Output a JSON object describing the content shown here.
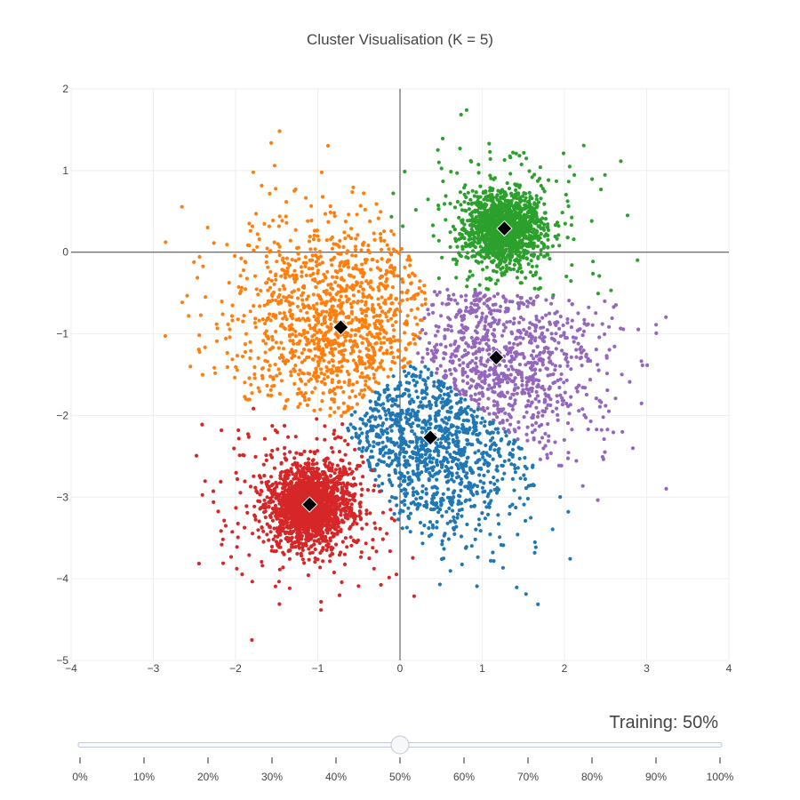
{
  "chart_data": {
    "type": "scatter",
    "title": "Cluster Visualisation (K = 5)",
    "xlabel": "",
    "ylabel": "",
    "xlim": [
      -4,
      4
    ],
    "ylim": [
      -5,
      2
    ],
    "x_ticks": [
      -4,
      -3,
      -2,
      -1,
      0,
      1,
      2,
      3,
      4
    ],
    "y_ticks": [
      2,
      1,
      0,
      -1,
      -2,
      -3,
      -4,
      -5
    ],
    "x_tick_labels": [
      "−4",
      "−3",
      "−2",
      "−1",
      "0",
      "1",
      "2",
      "3",
      "4"
    ],
    "y_tick_labels": [
      "2",
      "1",
      "0",
      "−1",
      "−2",
      "−3",
      "−4",
      "−5"
    ],
    "grid": true,
    "zero_lines": true,
    "legend": "none",
    "clusters": [
      {
        "color": "#2ca02c",
        "centroid": [
          1.27,
          0.29
        ],
        "core_sd": 0.22,
        "n_core": 1400,
        "spread_sd": 0.6,
        "n_spread": 220
      },
      {
        "color": "#ff7f0e",
        "centroid": [
          -0.72,
          -0.92
        ],
        "core_sd": 0.0,
        "n_core": 0,
        "spread_sd": 0.72,
        "n_spread": 1200
      },
      {
        "color": "#9467bd",
        "centroid": [
          1.17,
          -1.29
        ],
        "core_sd": 0.0,
        "n_core": 0,
        "spread_sd": 0.68,
        "n_spread": 900
      },
      {
        "color": "#1f77b4",
        "centroid": [
          0.37,
          -2.27
        ],
        "core_sd": 0.0,
        "n_core": 0,
        "spread_sd": 0.68,
        "n_spread": 1100
      },
      {
        "color": "#d62728",
        "centroid": [
          -1.1,
          -3.09
        ],
        "core_sd": 0.25,
        "n_core": 1600,
        "spread_sd": 0.55,
        "n_spread": 300
      }
    ],
    "centroid_marker": {
      "shape": "diamond",
      "color": "#000000"
    }
  },
  "slider": {
    "current_label": "Training: 50%",
    "value_percent": 50,
    "steps": [
      "0%",
      "10%",
      "20%",
      "30%",
      "40%",
      "50%",
      "60%",
      "70%",
      "80%",
      "90%",
      "100%"
    ]
  }
}
